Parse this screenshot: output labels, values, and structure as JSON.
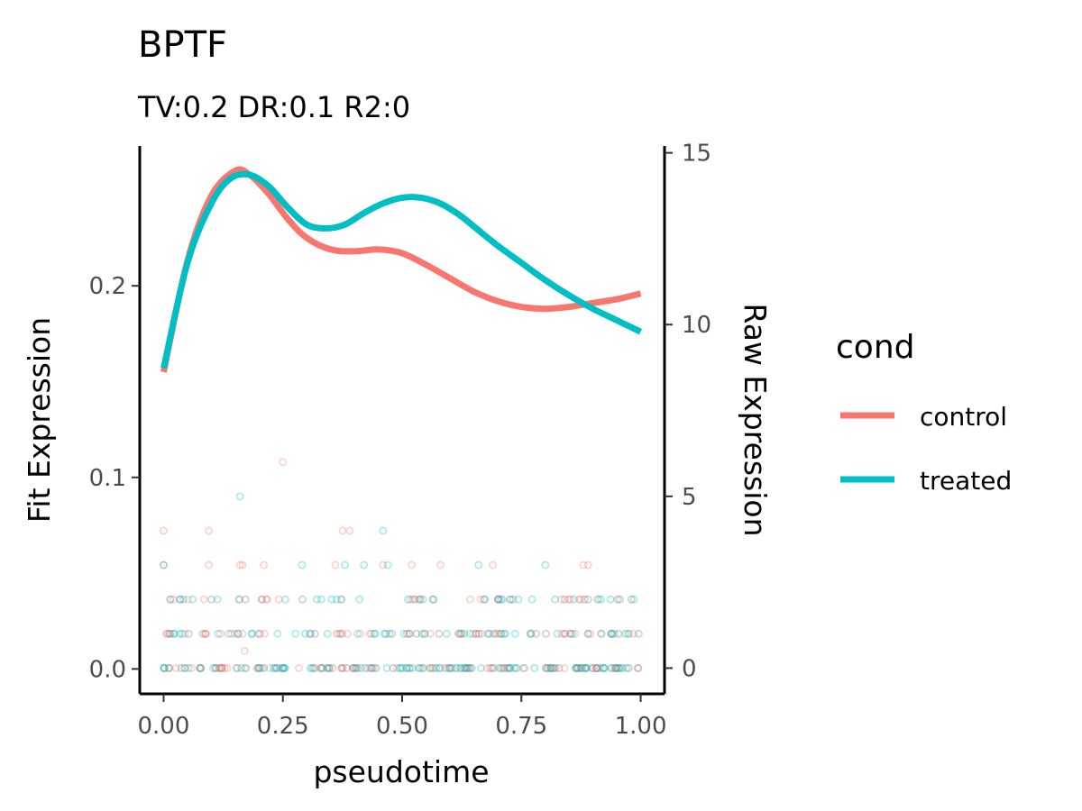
{
  "chart_data": {
    "type": "line",
    "title": "BPTF",
    "subtitle": "TV:0.2 DR:0.1 R2:0",
    "xlabel": "pseudotime",
    "ylabel": "Fit Expression",
    "y2label": "Raw Expression",
    "xlim": [
      -0.05,
      1.05
    ],
    "ylim": [
      -0.013,
      0.273
    ],
    "y2lim": [
      -0.75,
      15.2
    ],
    "x_ticks": [
      "0.00",
      "0.25",
      "0.50",
      "0.75",
      "1.00"
    ],
    "x_tick_values": [
      0,
      0.25,
      0.5,
      0.75,
      1.0
    ],
    "y_ticks": [
      "0.0",
      "0.1",
      "0.2"
    ],
    "y_tick_values": [
      0,
      0.1,
      0.2
    ],
    "y2_ticks": [
      "0",
      "5",
      "10",
      "15"
    ],
    "y2_tick_values": [
      0,
      5,
      10,
      15
    ],
    "grid": false,
    "legend": {
      "title": "cond",
      "placement": "right",
      "entries": [
        "control",
        "treated"
      ]
    },
    "series": [
      {
        "name": "control",
        "color": "#F8766D",
        "x": [
          0,
          0.05,
          0.1,
          0.15,
          0.18,
          0.22,
          0.26,
          0.3,
          0.35,
          0.4,
          0.45,
          0.5,
          0.55,
          0.6,
          0.65,
          0.7,
          0.75,
          0.8,
          0.85,
          0.9,
          0.95,
          1.0
        ],
        "y": [
          0.155,
          0.213,
          0.247,
          0.26,
          0.258,
          0.248,
          0.235,
          0.225,
          0.219,
          0.218,
          0.219,
          0.217,
          0.211,
          0.204,
          0.197,
          0.192,
          0.189,
          0.188,
          0.189,
          0.191,
          0.193,
          0.196
        ]
      },
      {
        "name": "treated",
        "color": "#00BFC4",
        "x": [
          0,
          0.05,
          0.1,
          0.14,
          0.18,
          0.22,
          0.26,
          0.3,
          0.34,
          0.38,
          0.42,
          0.46,
          0.5,
          0.54,
          0.58,
          0.62,
          0.66,
          0.7,
          0.75,
          0.8,
          0.85,
          0.9,
          0.95,
          1.0
        ],
        "y": [
          0.157,
          0.212,
          0.243,
          0.256,
          0.258,
          0.252,
          0.241,
          0.232,
          0.23,
          0.232,
          0.238,
          0.243,
          0.246,
          0.246,
          0.243,
          0.237,
          0.229,
          0.221,
          0.212,
          0.203,
          0.195,
          0.188,
          0.182,
          0.176
        ]
      }
    ],
    "raw_points": {
      "description_units": "pseudotime vs Raw Expression (counts)",
      "control": [
        [
          0.0,
          4
        ],
        [
          0.095,
          4
        ],
        [
          0.25,
          6
        ],
        [
          0.375,
          4
        ],
        [
          0.39,
          4
        ],
        [
          0.17,
          0.5
        ],
        [
          0.0,
          3
        ],
        [
          0.095,
          3
        ],
        [
          0.16,
          3
        ],
        [
          0.165,
          3
        ],
        [
          0.21,
          3
        ],
        [
          0.36,
          3
        ],
        [
          0.46,
          3
        ],
        [
          0.52,
          3
        ],
        [
          0.58,
          3
        ],
        [
          0.69,
          3
        ],
        [
          0.88,
          3
        ],
        [
          0.89,
          3
        ]
      ],
      "treated": [
        [
          0.16,
          5
        ],
        [
          0.46,
          4
        ],
        [
          0.0,
          3
        ],
        [
          0.29,
          3
        ],
        [
          0.38,
          3
        ],
        [
          0.42,
          3
        ],
        [
          0.47,
          3
        ],
        [
          0.66,
          3
        ],
        [
          0.8,
          3
        ]
      ]
    }
  }
}
